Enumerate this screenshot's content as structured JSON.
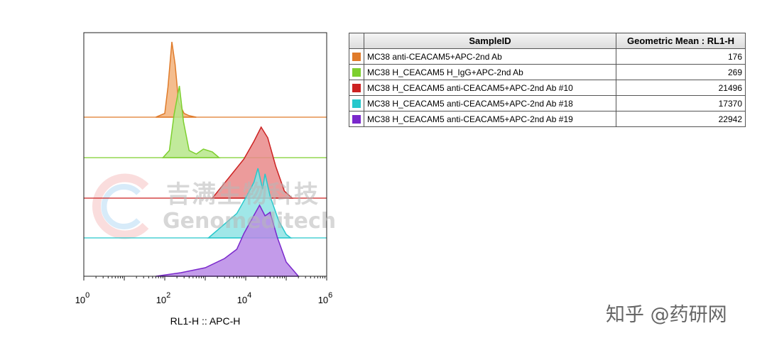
{
  "chart_data": {
    "type": "area",
    "xlabel": "RL1-H :: APC-H",
    "xscale": "log",
    "xlim": [
      1,
      1000000
    ],
    "x_ticks": [
      {
        "base": "10",
        "exp": "0",
        "value": 1
      },
      {
        "base": "10",
        "exp": "2",
        "value": 100
      },
      {
        "base": "10",
        "exp": "4",
        "value": 10000
      },
      {
        "base": "10",
        "exp": "6",
        "value": 1000000
      }
    ],
    "series": [
      {
        "name": "MC38 anti-CEACAM5+APC-2nd Ab",
        "color": "#e07b2a",
        "fill": "#f2b27a",
        "points": [
          [
            60,
            0
          ],
          [
            100,
            0.05
          ],
          [
            120,
            0.4
          ],
          [
            150,
            1.0
          ],
          [
            180,
            0.7
          ],
          [
            220,
            0.2
          ],
          [
            300,
            0.05
          ],
          [
            400,
            0.02
          ],
          [
            600,
            0
          ]
        ]
      },
      {
        "name": "MC38 H_CEACAM5 H_IgG+APC-2nd Ab",
        "color": "#7dcf2e",
        "fill": "#b6e68a",
        "points": [
          [
            90,
            0
          ],
          [
            130,
            0.1
          ],
          [
            170,
            0.6
          ],
          [
            230,
            1.0
          ],
          [
            290,
            0.5
          ],
          [
            400,
            0.1
          ],
          [
            600,
            0.05
          ],
          [
            900,
            0.12
          ],
          [
            1500,
            0.08
          ],
          [
            2200,
            0
          ]
        ]
      },
      {
        "name": "MC38 H_CEACAM5 anti-CEACAM5+APC-2nd Ab #10",
        "color": "#cc2222",
        "fill": "#e98a8a",
        "points": [
          [
            1500,
            0
          ],
          [
            4000,
            0.3
          ],
          [
            9000,
            0.55
          ],
          [
            16000,
            0.8
          ],
          [
            24000,
            1.0
          ],
          [
            35000,
            0.85
          ],
          [
            55000,
            0.45
          ],
          [
            90000,
            0.1
          ],
          [
            140000,
            0
          ]
        ]
      },
      {
        "name": "MC38 H_CEACAM5 anti-CEACAM5+APC-2nd Ab #18",
        "color": "#28c8cc",
        "fill": "#8fe3e4",
        "points": [
          [
            1200,
            0
          ],
          [
            3000,
            0.2
          ],
          [
            6000,
            0.35
          ],
          [
            11000,
            0.62
          ],
          [
            16000,
            0.8
          ],
          [
            20000,
            1.0
          ],
          [
            26000,
            0.7
          ],
          [
            30000,
            0.92
          ],
          [
            40000,
            0.6
          ],
          [
            65000,
            0.25
          ],
          [
            100000,
            0.05
          ],
          [
            130000,
            0
          ]
        ]
      },
      {
        "name": "MC38 H_CEACAM5 anti-CEACAM5+APC-2nd Ab #19",
        "color": "#7a28cc",
        "fill": "#b88ae6",
        "points": [
          [
            60,
            0
          ],
          [
            250,
            0.05
          ],
          [
            1000,
            0.12
          ],
          [
            3000,
            0.25
          ],
          [
            6000,
            0.38
          ],
          [
            9000,
            0.6
          ],
          [
            14000,
            0.8
          ],
          [
            22000,
            1.0
          ],
          [
            30000,
            0.85
          ],
          [
            40000,
            0.9
          ],
          [
            60000,
            0.55
          ],
          [
            100000,
            0.2
          ],
          [
            200000,
            0
          ]
        ]
      }
    ]
  },
  "table": {
    "headers": [
      "SampleID",
      "Geometric Mean : RL1-H"
    ],
    "rows": [
      {
        "color": "#e07b2a",
        "sample": "MC38 anti-CEACAM5+APC-2nd Ab",
        "mean": "176"
      },
      {
        "color": "#7dcf2e",
        "sample": "MC38 H_CEACAM5 H_IgG+APC-2nd Ab",
        "mean": "269"
      },
      {
        "color": "#cc2222",
        "sample": "MC38 H_CEACAM5 anti-CEACAM5+APC-2nd Ab #10",
        "mean": "21496"
      },
      {
        "color": "#28c8cc",
        "sample": "MC38 H_CEACAM5 anti-CEACAM5+APC-2nd Ab #18",
        "mean": "17370"
      },
      {
        "color": "#7a28cc",
        "sample": "MC38 H_CEACAM5 anti-CEACAM5+APC-2nd Ab #19",
        "mean": "22942"
      }
    ]
  },
  "watermark": {
    "cn": "吉满生物科技",
    "en": "Genomeditech"
  },
  "credit": "知乎 @药研网"
}
